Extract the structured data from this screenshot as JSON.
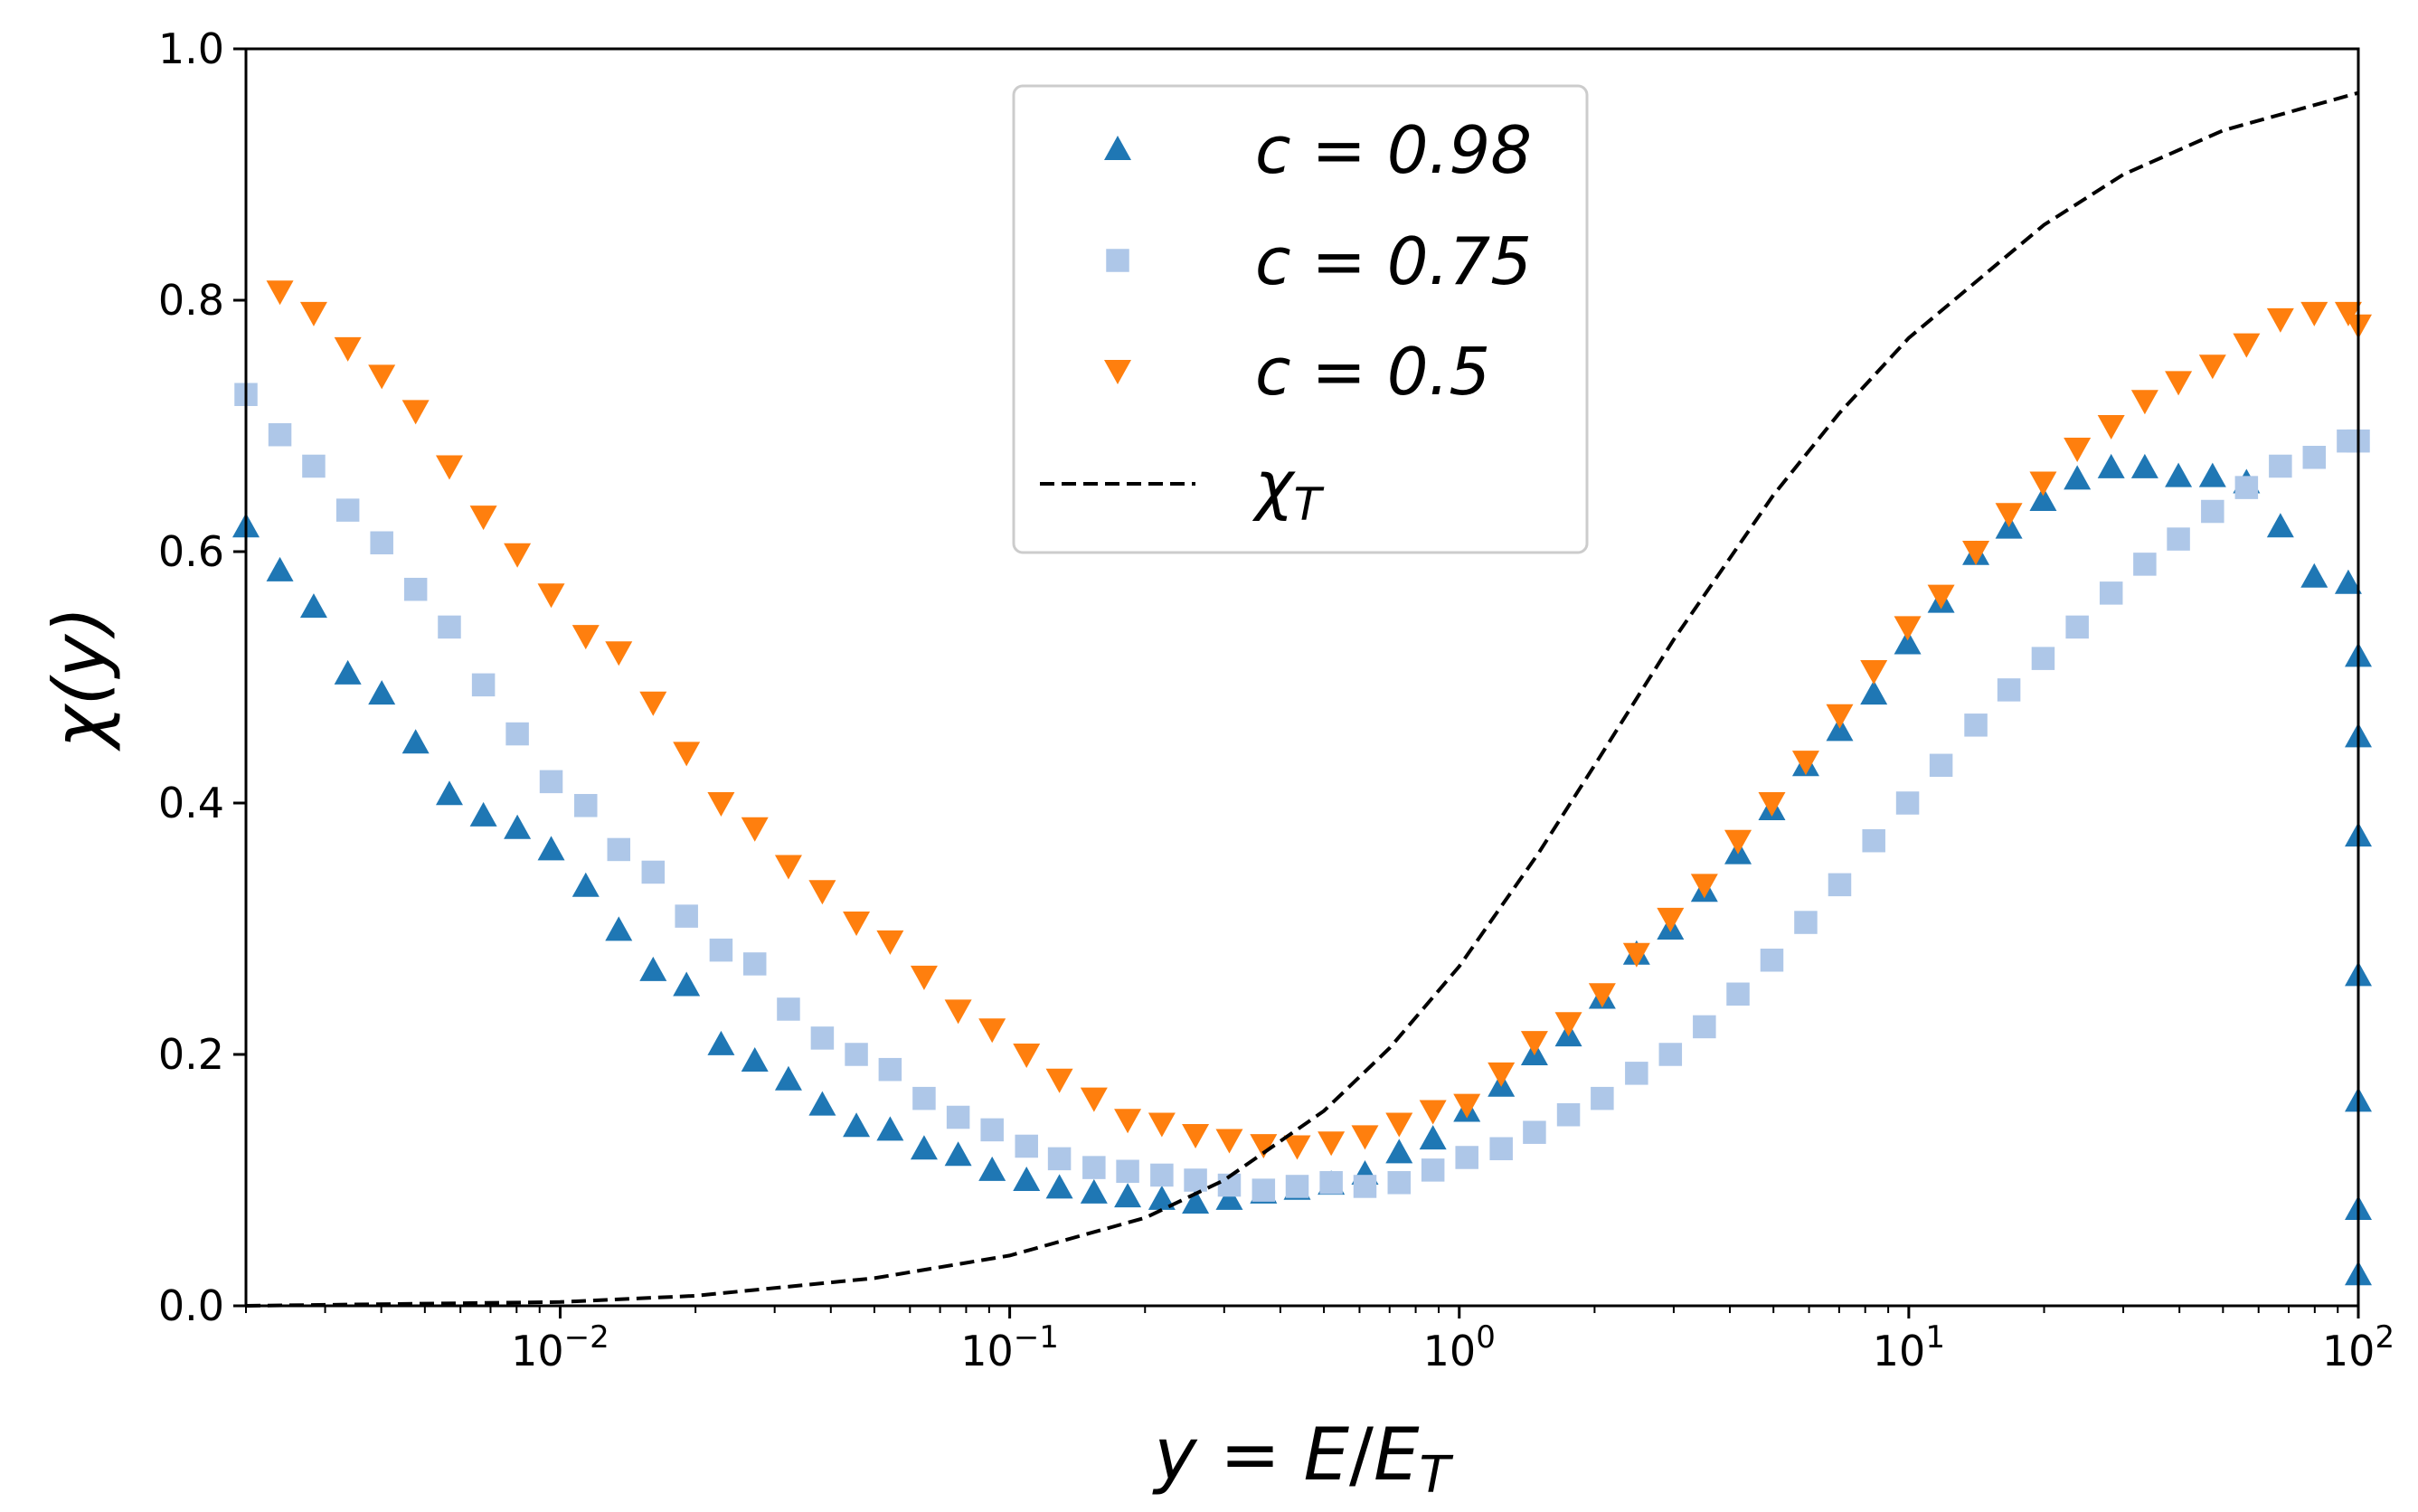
{
  "chart_data": {
    "type": "scatter",
    "xscale": "log",
    "xlim": [
      0.002,
      100
    ],
    "ylim": [
      0.0,
      1.0
    ],
    "xlabel": "y = E/E_T",
    "ylabel": "χ(y)",
    "grid": false,
    "legend_position": "top-center",
    "y_ticks": [
      {
        "v": 0.0,
        "t": "0.0"
      },
      {
        "v": 0.2,
        "t": "0.2"
      },
      {
        "v": 0.4,
        "t": "0.4"
      },
      {
        "v": 0.6,
        "t": "0.6"
      },
      {
        "v": 0.8,
        "t": "0.8"
      },
      {
        "v": 1.0,
        "t": "1.0"
      }
    ],
    "x_ticks": [
      {
        "v": 0.01,
        "base": "10",
        "exp": "−2"
      },
      {
        "v": 0.1,
        "base": "10",
        "exp": "−1"
      },
      {
        "v": 1,
        "base": "10",
        "exp": "0"
      },
      {
        "v": 10,
        "base": "10",
        "exp": "1"
      },
      {
        "v": 100,
        "base": "10",
        "exp": "2"
      }
    ],
    "series": [
      {
        "name": "c = 0.98",
        "marker": "triangle-up",
        "color": "#1f77b4",
        "points": [
          [
            0.002,
            0.62
          ],
          [
            0.00238,
            0.585
          ],
          [
            0.00283,
            0.556
          ],
          [
            0.00337,
            0.503
          ],
          [
            0.00401,
            0.487
          ],
          [
            0.00477,
            0.448
          ],
          [
            0.00567,
            0.407
          ],
          [
            0.00675,
            0.39
          ],
          [
            0.00803,
            0.38
          ],
          [
            0.00955,
            0.363
          ],
          [
            0.0114,
            0.334
          ],
          [
            0.0135,
            0.299
          ],
          [
            0.0161,
            0.267
          ],
          [
            0.0191,
            0.255
          ],
          [
            0.0228,
            0.208
          ],
          [
            0.0271,
            0.195
          ],
          [
            0.0322,
            0.18
          ],
          [
            0.0383,
            0.16
          ],
          [
            0.0456,
            0.143
          ],
          [
            0.0542,
            0.14
          ],
          [
            0.0645,
            0.125
          ],
          [
            0.0768,
            0.12
          ],
          [
            0.0914,
            0.108
          ],
          [
            0.109,
            0.1
          ],
          [
            0.129,
            0.094
          ],
          [
            0.154,
            0.09
          ],
          [
            0.183,
            0.087
          ],
          [
            0.218,
            0.085
          ],
          [
            0.259,
            0.082
          ],
          [
            0.308,
            0.085
          ],
          [
            0.367,
            0.09
          ],
          [
            0.436,
            0.093
          ],
          [
            0.519,
            0.097
          ],
          [
            0.617,
            0.105
          ],
          [
            0.735,
            0.122
          ],
          [
            0.874,
            0.133
          ],
          [
            1.04,
            0.155
          ],
          [
            1.24,
            0.175
          ],
          [
            1.47,
            0.2
          ],
          [
            1.75,
            0.215
          ],
          [
            2.08,
            0.245
          ],
          [
            2.48,
            0.28
          ],
          [
            2.95,
            0.3
          ],
          [
            3.51,
            0.33
          ],
          [
            4.17,
            0.36
          ],
          [
            4.96,
            0.395
          ],
          [
            5.9,
            0.43
          ],
          [
            7.02,
            0.458
          ],
          [
            8.36,
            0.487
          ],
          [
            9.94,
            0.527
          ],
          [
            11.8,
            0.56
          ],
          [
            14.1,
            0.598
          ],
          [
            16.7,
            0.619
          ],
          [
            19.9,
            0.641
          ],
          [
            23.7,
            0.658
          ],
          [
            28.2,
            0.667
          ],
          [
            33.5,
            0.667
          ],
          [
            39.8,
            0.66
          ],
          [
            47.4,
            0.66
          ],
          [
            56.4,
            0.655
          ],
          [
            67.1,
            0.62
          ],
          [
            79.8,
            0.58
          ],
          [
            95.0,
            0.575
          ],
          [
            100,
            0.517
          ],
          [
            100,
            0.453
          ],
          [
            100,
            0.374
          ],
          [
            100,
            0.263
          ],
          [
            100,
            0.163
          ],
          [
            100,
            0.077
          ],
          [
            100,
            0.025
          ]
        ]
      },
      {
        "name": "c = 0.75",
        "marker": "square",
        "color": "#aec7e8",
        "points": [
          [
            0.002,
            0.725
          ],
          [
            0.00238,
            0.693
          ],
          [
            0.00283,
            0.668
          ],
          [
            0.00337,
            0.633
          ],
          [
            0.00401,
            0.607
          ],
          [
            0.00477,
            0.57
          ],
          [
            0.00567,
            0.54
          ],
          [
            0.00675,
            0.494
          ],
          [
            0.00803,
            0.455
          ],
          [
            0.00955,
            0.417
          ],
          [
            0.0114,
            0.398
          ],
          [
            0.0135,
            0.363
          ],
          [
            0.0161,
            0.345
          ],
          [
            0.0191,
            0.31
          ],
          [
            0.0228,
            0.283
          ],
          [
            0.0271,
            0.272
          ],
          [
            0.0322,
            0.236
          ],
          [
            0.0383,
            0.213
          ],
          [
            0.0456,
            0.2
          ],
          [
            0.0542,
            0.188
          ],
          [
            0.0645,
            0.165
          ],
          [
            0.0768,
            0.15
          ],
          [
            0.0914,
            0.14
          ],
          [
            0.109,
            0.127
          ],
          [
            0.129,
            0.117
          ],
          [
            0.154,
            0.11
          ],
          [
            0.183,
            0.107
          ],
          [
            0.218,
            0.104
          ],
          [
            0.259,
            0.1
          ],
          [
            0.308,
            0.096
          ],
          [
            0.367,
            0.092
          ],
          [
            0.436,
            0.095
          ],
          [
            0.519,
            0.098
          ],
          [
            0.617,
            0.095
          ],
          [
            0.735,
            0.098
          ],
          [
            0.874,
            0.108
          ],
          [
            1.04,
            0.118
          ],
          [
            1.24,
            0.125
          ],
          [
            1.47,
            0.138
          ],
          [
            1.75,
            0.152
          ],
          [
            2.08,
            0.165
          ],
          [
            2.48,
            0.185
          ],
          [
            2.95,
            0.2
          ],
          [
            3.51,
            0.222
          ],
          [
            4.17,
            0.248
          ],
          [
            4.96,
            0.275
          ],
          [
            5.9,
            0.305
          ],
          [
            7.02,
            0.335
          ],
          [
            8.36,
            0.37
          ],
          [
            9.94,
            0.4
          ],
          [
            11.8,
            0.43
          ],
          [
            14.1,
            0.462
          ],
          [
            16.7,
            0.49
          ],
          [
            19.9,
            0.515
          ],
          [
            23.7,
            0.54
          ],
          [
            28.2,
            0.567
          ],
          [
            33.5,
            0.59
          ],
          [
            39.8,
            0.61
          ],
          [
            47.4,
            0.632
          ],
          [
            56.4,
            0.651
          ],
          [
            67.1,
            0.668
          ],
          [
            79.8,
            0.675
          ],
          [
            95.0,
            0.688
          ],
          [
            100,
            0.688
          ]
        ]
      },
      {
        "name": "c = 0.5",
        "marker": "triangle-down",
        "color": "#ff7f0e",
        "points": [
          [
            0.00238,
            0.807
          ],
          [
            0.00283,
            0.79
          ],
          [
            0.00337,
            0.762
          ],
          [
            0.00401,
            0.74
          ],
          [
            0.00477,
            0.712
          ],
          [
            0.00567,
            0.668
          ],
          [
            0.00675,
            0.628
          ],
          [
            0.00803,
            0.598
          ],
          [
            0.00955,
            0.566
          ],
          [
            0.0114,
            0.533
          ],
          [
            0.0135,
            0.52
          ],
          [
            0.0161,
            0.48
          ],
          [
            0.0191,
            0.44
          ],
          [
            0.0228,
            0.4
          ],
          [
            0.0271,
            0.38
          ],
          [
            0.0322,
            0.35
          ],
          [
            0.0383,
            0.33
          ],
          [
            0.0456,
            0.305
          ],
          [
            0.0542,
            0.29
          ],
          [
            0.0645,
            0.262
          ],
          [
            0.0768,
            0.235
          ],
          [
            0.0914,
            0.22
          ],
          [
            0.109,
            0.2
          ],
          [
            0.129,
            0.18
          ],
          [
            0.154,
            0.165
          ],
          [
            0.183,
            0.148
          ],
          [
            0.218,
            0.145
          ],
          [
            0.259,
            0.136
          ],
          [
            0.308,
            0.132
          ],
          [
            0.367,
            0.128
          ],
          [
            0.436,
            0.127
          ],
          [
            0.519,
            0.13
          ],
          [
            0.617,
            0.135
          ],
          [
            0.735,
            0.145
          ],
          [
            0.874,
            0.155
          ],
          [
            1.04,
            0.16
          ],
          [
            1.24,
            0.185
          ],
          [
            1.47,
            0.21
          ],
          [
            1.75,
            0.225
          ],
          [
            2.08,
            0.248
          ],
          [
            2.48,
            0.28
          ],
          [
            2.95,
            0.308
          ],
          [
            3.51,
            0.335
          ],
          [
            4.17,
            0.37
          ],
          [
            4.96,
            0.4
          ],
          [
            5.9,
            0.433
          ],
          [
            7.02,
            0.47
          ],
          [
            8.36,
            0.505
          ],
          [
            9.94,
            0.54
          ],
          [
            11.8,
            0.565
          ],
          [
            14.1,
            0.6
          ],
          [
            16.7,
            0.63
          ],
          [
            19.9,
            0.655
          ],
          [
            23.7,
            0.682
          ],
          [
            28.2,
            0.7
          ],
          [
            33.5,
            0.72
          ],
          [
            39.8,
            0.735
          ],
          [
            47.4,
            0.748
          ],
          [
            56.4,
            0.765
          ],
          [
            67.1,
            0.785
          ],
          [
            79.8,
            0.79
          ],
          [
            95.0,
            0.79
          ],
          [
            100,
            0.78
          ]
        ]
      },
      {
        "name": "χ_T",
        "marker": "dashed-line",
        "color": "#000000",
        "points": [
          [
            0.002,
            0.0
          ],
          [
            0.01,
            0.003
          ],
          [
            0.02,
            0.008
          ],
          [
            0.05,
            0.022
          ],
          [
            0.1,
            0.04
          ],
          [
            0.2,
            0.07
          ],
          [
            0.3,
            0.1
          ],
          [
            0.5,
            0.155
          ],
          [
            0.7,
            0.205
          ],
          [
            1.0,
            0.27
          ],
          [
            1.5,
            0.36
          ],
          [
            2.0,
            0.43
          ],
          [
            3.0,
            0.53
          ],
          [
            5.0,
            0.645
          ],
          [
            7.0,
            0.71
          ],
          [
            10.0,
            0.77
          ],
          [
            20.0,
            0.86
          ],
          [
            30.0,
            0.9
          ],
          [
            50.0,
            0.935
          ],
          [
            100,
            0.965
          ]
        ]
      }
    ]
  }
}
